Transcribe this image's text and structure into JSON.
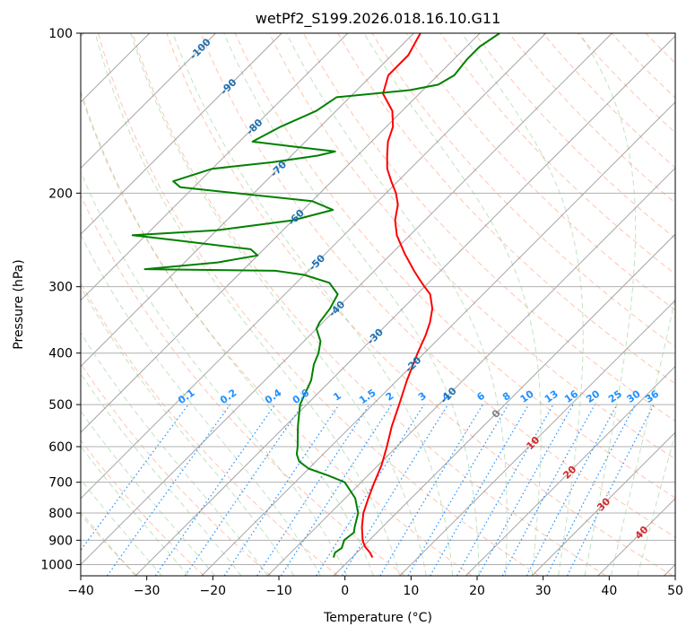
{
  "chart_data": {
    "type": "line",
    "title": "wetPf2_S199.2026.018.16.10.G11",
    "xlabel": "Temperature (°C)",
    "ylabel": "Pressure (hPa)",
    "xlim": [
      -40,
      50
    ],
    "ylim": [
      1050,
      100
    ],
    "y_scale": "log",
    "grid": true,
    "x_ticks": [
      -40,
      -30,
      -20,
      -10,
      0,
      10,
      20,
      30,
      40,
      50
    ],
    "x_tick_labels": [
      "−40",
      "−30",
      "−20",
      "−10",
      "0",
      "10",
      "20",
      "30",
      "40",
      "50"
    ],
    "y_ticks": [
      1000,
      900,
      800,
      700,
      600,
      500,
      400,
      300,
      200,
      100
    ],
    "y_tick_labels": [
      "1000",
      "900",
      "800",
      "700",
      "600",
      "500",
      "400",
      "300",
      "200",
      "100"
    ],
    "skew_reference_hpa": 1000,
    "colors": {
      "temperature": "#ff0000",
      "dewpoint": "#008000",
      "mixing_ratio": "#1e90ff",
      "dry_adiabat": "#ff7f50",
      "moist_adiabat": "#4caf50",
      "isotherm": "#888888",
      "isotherm_label_cold": "#1f6fb0",
      "isotherm_label_zero": "#808080",
      "isotherm_label_warm": "#d62728"
    },
    "series": [
      {
        "key": "temperature",
        "points": [
          [
            970,
            3.1
          ],
          [
            950,
            2.0
          ],
          [
            925,
            0.3
          ],
          [
            900,
            -1.0
          ],
          [
            850,
            -3.1
          ],
          [
            800,
            -5.0
          ],
          [
            750,
            -6.5
          ],
          [
            700,
            -8.0
          ],
          [
            650,
            -9.5
          ],
          [
            600,
            -11.5
          ],
          [
            550,
            -13.8
          ],
          [
            500,
            -16.0
          ],
          [
            450,
            -18.5
          ],
          [
            400,
            -21.0
          ],
          [
            370,
            -22.5
          ],
          [
            350,
            -23.8
          ],
          [
            330,
            -25.5
          ],
          [
            310,
            -28.0
          ],
          [
            300,
            -30.0
          ],
          [
            290,
            -32.0
          ],
          [
            280,
            -34.0
          ],
          [
            260,
            -38.0
          ],
          [
            240,
            -42.0
          ],
          [
            225,
            -44.5
          ],
          [
            210,
            -46.5
          ],
          [
            200,
            -48.5
          ],
          [
            190,
            -51.0
          ],
          [
            180,
            -53.5
          ],
          [
            170,
            -55.5
          ],
          [
            160,
            -57.5
          ],
          [
            150,
            -59.0
          ],
          [
            140,
            -61.5
          ],
          [
            130,
            -65.5
          ],
          [
            120,
            -67.5
          ],
          [
            110,
            -67.5
          ],
          [
            100,
            -69.0
          ]
        ]
      },
      {
        "key": "dewpoint",
        "points": [
          [
            970,
            -2.8
          ],
          [
            950,
            -3.3
          ],
          [
            930,
            -3.0
          ],
          [
            900,
            -3.8
          ],
          [
            870,
            -3.5
          ],
          [
            850,
            -4.2
          ],
          [
            800,
            -5.8
          ],
          [
            750,
            -8.5
          ],
          [
            700,
            -12.5
          ],
          [
            680,
            -16.0
          ],
          [
            660,
            -20.0
          ],
          [
            640,
            -22.5
          ],
          [
            620,
            -24.0
          ],
          [
            600,
            -25.0
          ],
          [
            550,
            -28.0
          ],
          [
            500,
            -31.0
          ],
          [
            450,
            -33.0
          ],
          [
            420,
            -35.0
          ],
          [
            400,
            -36.0
          ],
          [
            380,
            -37.5
          ],
          [
            360,
            -40.0
          ],
          [
            350,
            -40.5
          ],
          [
            330,
            -41.0
          ],
          [
            310,
            -42.0
          ],
          [
            295,
            -45.0
          ],
          [
            285,
            -50.0
          ],
          [
            280,
            -55.0
          ],
          [
            278,
            -75.0
          ],
          [
            270,
            -65.0
          ],
          [
            262,
            -60.0
          ],
          [
            255,
            -62.0
          ],
          [
            245,
            -75.0
          ],
          [
            240,
            -82.0
          ],
          [
            235,
            -70.0
          ],
          [
            225,
            -60.0
          ],
          [
            215,
            -55.5
          ],
          [
            207,
            -60.0
          ],
          [
            195,
            -82.0
          ],
          [
            190,
            -84.0
          ],
          [
            180,
            -80.0
          ],
          [
            175,
            -72.0
          ],
          [
            170,
            -66.0
          ],
          [
            167,
            -64.0
          ],
          [
            164,
            -70.0
          ],
          [
            160,
            -78.0
          ],
          [
            150,
            -76.0
          ],
          [
            140,
            -73.0
          ],
          [
            132,
            -72.0
          ],
          [
            128,
            -62.0
          ],
          [
            125,
            -58.5
          ],
          [
            120,
            -57.5
          ],
          [
            112,
            -58.0
          ],
          [
            106,
            -58.0
          ],
          [
            100,
            -57.0
          ]
        ]
      }
    ],
    "isotherm_labels": [
      "-100",
      "-90",
      "-80",
      "-70",
      "-60",
      "-50",
      "-40",
      "-30",
      "-20",
      "-10",
      "0",
      "10",
      "20",
      "30",
      "40"
    ],
    "mixing_ratio_labels": [
      "0.1",
      "0.2",
      "0.4",
      "0.6",
      "1",
      "1.5",
      "2",
      "3",
      "4",
      "6",
      "8",
      "10",
      "13",
      "16",
      "20",
      "25",
      "30",
      "36"
    ]
  }
}
